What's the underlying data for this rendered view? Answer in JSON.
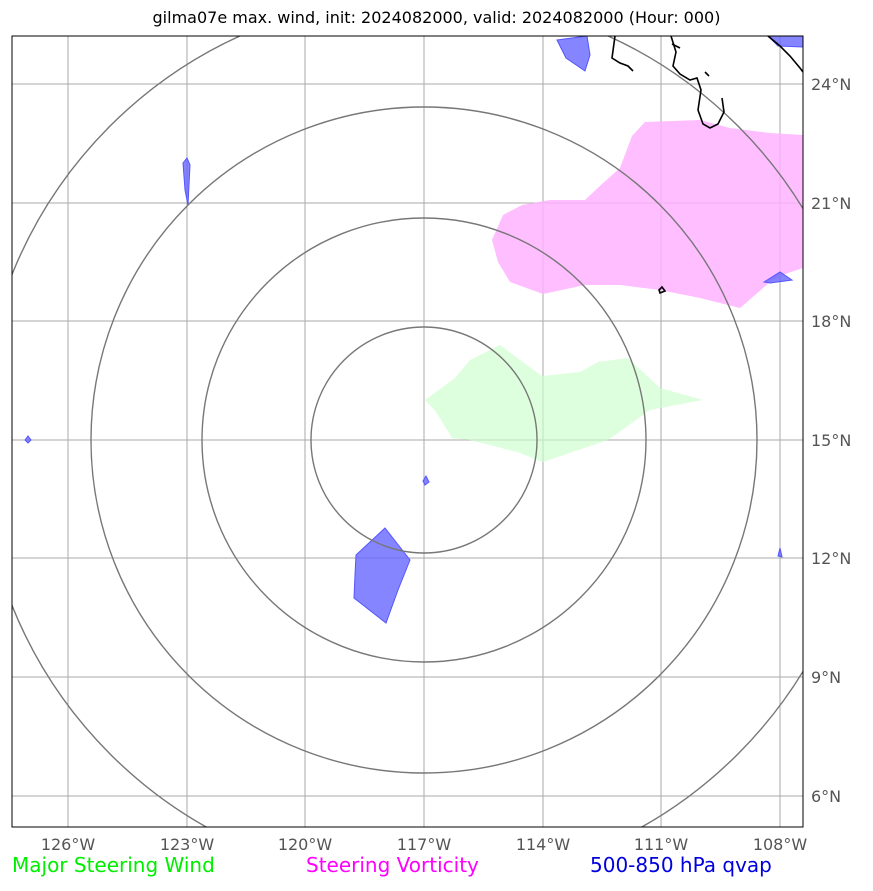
{
  "title": "gilma07e max. wind, init: 2024082000, valid: 2024082000 (Hour: 000)",
  "legend": {
    "wind": "Major Steering Wind",
    "vorticity": "Steering Vorticity",
    "qvap": "500-850 hPa qvap"
  },
  "axes": {
    "lon_ticks": [
      "126°W",
      "123°W",
      "120°W",
      "117°W",
      "114°W",
      "111°W",
      "108°W"
    ],
    "lat_ticks": [
      "24°N",
      "21°N",
      "18°N",
      "15°N",
      "12°N",
      "9°N",
      "6°N"
    ]
  },
  "colors": {
    "wind": "#ccffcc",
    "vorticity": "#ffb3ff",
    "qvap": "#6666ff",
    "grid": "#aaaaaa",
    "rings": "#777777",
    "coast": "#000000"
  }
}
